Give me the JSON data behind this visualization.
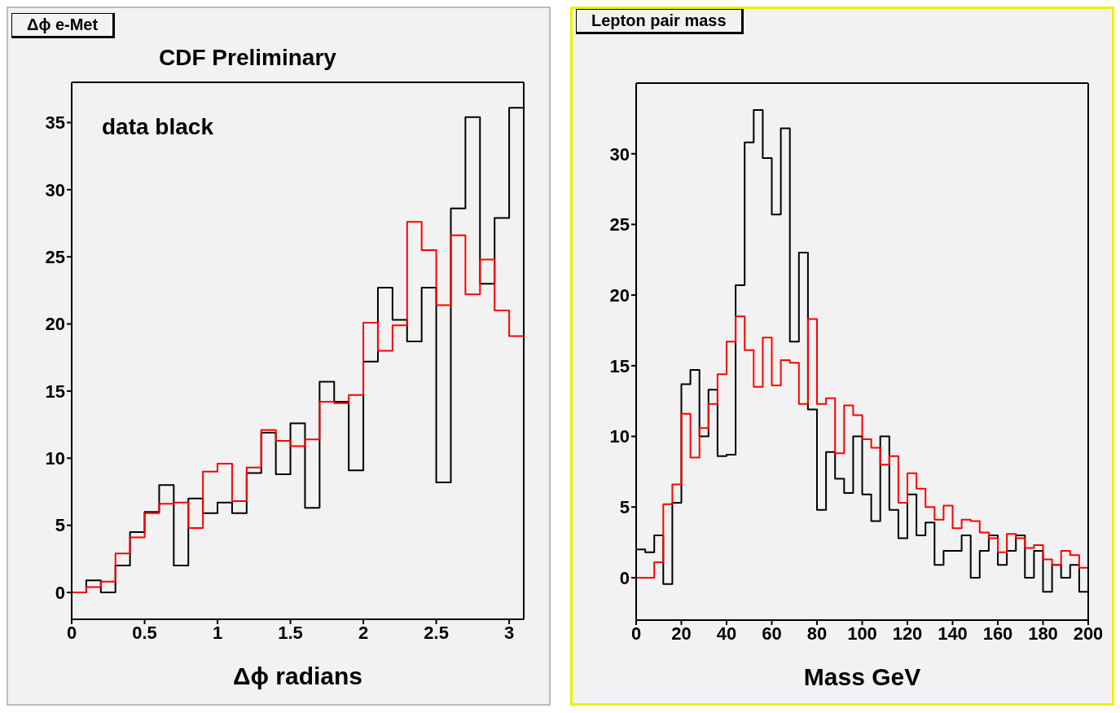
{
  "chart_data": [
    {
      "type": "histogram",
      "title": "Δϕ e-Met",
      "xlabel": "Δϕ radians",
      "annotations": [
        "CDF Preliminary",
        "data black"
      ],
      "bins": [
        0,
        0.1,
        0.2,
        0.3,
        0.4,
        0.5,
        0.6,
        0.7,
        0.8,
        0.9,
        1.0,
        1.1,
        1.2,
        1.3,
        1.4,
        1.5,
        1.6,
        1.7,
        1.8,
        1.9,
        2.0,
        2.1,
        2.2,
        2.3,
        2.4,
        2.5,
        2.6,
        2.7,
        2.8,
        2.9,
        3.0,
        3.1
      ],
      "series": [
        {
          "color": "#000000",
          "values": [
            0,
            0.9,
            0,
            2.0,
            4.5,
            6.0,
            8.0,
            2.0,
            7.0,
            5.9,
            6.7,
            5.9,
            8.9,
            11.9,
            8.8,
            12.6,
            6.3,
            15.7,
            14.2,
            9.1,
            17.2,
            22.7,
            20.3,
            18.7,
            22.7,
            8.2,
            28.6,
            35.4,
            23.0,
            27.9,
            36.1
          ]
        },
        {
          "color": "#ff0000",
          "values": [
            0,
            0.4,
            0.8,
            2.9,
            4.1,
            5.9,
            6.6,
            6.7,
            4.8,
            9.0,
            9.6,
            6.8,
            9.3,
            12.1,
            11.3,
            10.9,
            11.4,
            14.2,
            14.1,
            14.7,
            20.1,
            18.0,
            19.9,
            27.6,
            25.5,
            21.4,
            26.6,
            22.2,
            24.8,
            21.0,
            19.1
          ]
        }
      ],
      "xlim": [
        0,
        3.1
      ],
      "xticks": [
        0,
        0.5,
        1,
        1.5,
        2,
        2.5,
        3
      ],
      "ylim": [
        -2,
        38
      ],
      "yticks": [
        0,
        5,
        10,
        15,
        20,
        25,
        30,
        35
      ],
      "grid": false,
      "legend": false
    },
    {
      "type": "histogram",
      "title": "Lepton pair mass",
      "xlabel": "Mass GeV",
      "bins": [
        0,
        4,
        8,
        12,
        16,
        20,
        24,
        28,
        32,
        36,
        40,
        44,
        48,
        52,
        56,
        60,
        64,
        68,
        72,
        76,
        80,
        84,
        88,
        92,
        96,
        100,
        104,
        108,
        112,
        116,
        120,
        124,
        128,
        132,
        136,
        140,
        144,
        148,
        152,
        156,
        160,
        164,
        168,
        172,
        176,
        180,
        184,
        188,
        192,
        196,
        200
      ],
      "series": [
        {
          "color": "#000000",
          "values": [
            2.0,
            1.8,
            3.0,
            -0.45,
            5.3,
            13.7,
            14.7,
            10.0,
            13.3,
            8.6,
            8.7,
            20.7,
            30.8,
            33.1,
            29.7,
            25.7,
            31.8,
            16.7,
            23.0,
            11.9,
            4.8,
            8.9,
            7.0,
            6.0,
            10.0,
            5.9,
            4.0,
            10.0,
            4.8,
            2.8,
            5.9,
            3.0,
            3.9,
            0.9,
            1.9,
            1.9,
            3.0,
            0,
            1.9,
            3.0,
            0.9,
            1.9,
            3.0,
            0,
            1.9,
            -1.0,
            0.9,
            0,
            0.9,
            -1.0
          ]
        },
        {
          "color": "#ff0000",
          "values": [
            0,
            0,
            1.1,
            5.2,
            6.6,
            11.6,
            8.5,
            10.6,
            12.3,
            14.4,
            16.7,
            18.5,
            16.1,
            13.5,
            17.0,
            13.6,
            15.4,
            15.2,
            12.3,
            18.3,
            12.3,
            12.7,
            8.8,
            12.2,
            11.5,
            9.8,
            9.2,
            8.0,
            8.6,
            5.3,
            7.4,
            6.3,
            5.0,
            4.1,
            5.1,
            3.5,
            4.1,
            4.0,
            3.2,
            2.8,
            1.8,
            3.1,
            2.8,
            2.1,
            2.3,
            1.3,
            0.9,
            1.9,
            1.6,
            0.7
          ]
        }
      ],
      "xlim": [
        0,
        200
      ],
      "xticks": [
        0,
        20,
        40,
        60,
        80,
        100,
        120,
        140,
        160,
        180,
        200
      ],
      "ylim": [
        -3,
        35
      ],
      "yticks": [
        0,
        5,
        10,
        15,
        20,
        25,
        30
      ],
      "grid": false,
      "legend": false
    }
  ]
}
